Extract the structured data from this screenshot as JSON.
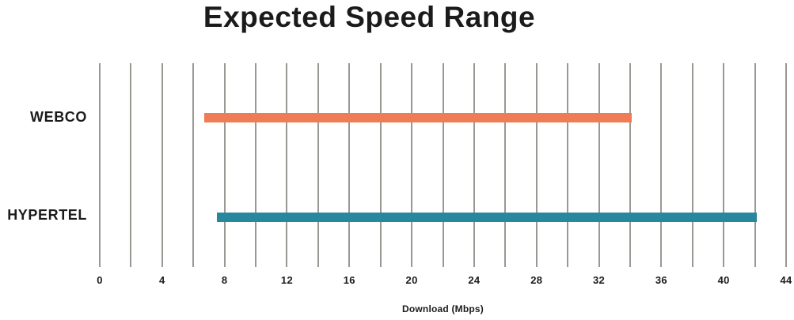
{
  "chart_data": {
    "type": "bar",
    "subtype": "horizontal-range",
    "title": "Expected Speed Range",
    "xlabel": "Download (Mbps)",
    "ylabel": "",
    "categories": [
      "WEBCO",
      "HYPERTEL"
    ],
    "series": [
      {
        "name": "WEBCO",
        "range_mbps": [
          6.7,
          34.1
        ],
        "color": "#ef7c55"
      },
      {
        "name": "HYPERTEL",
        "range_mbps": [
          7.5,
          42.1
        ],
        "color": "#27879d"
      }
    ],
    "xlim": [
      0,
      44
    ],
    "x_major_ticks": [
      0,
      4,
      8,
      12,
      16,
      20,
      24,
      28,
      32,
      36,
      40,
      44
    ],
    "x_gridline_step": 2,
    "grid": "vertical",
    "gridline_color": "#9a9892",
    "text_color": "#1b1b1b",
    "background": "#ffffff",
    "legend": "none"
  }
}
